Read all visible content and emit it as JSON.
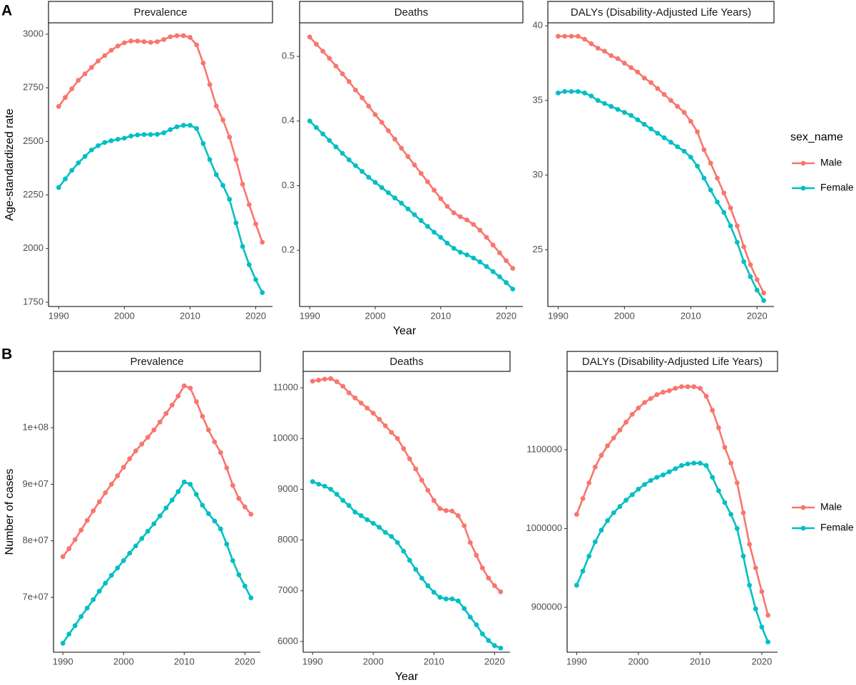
{
  "rows": [
    {
      "label": "A",
      "y_label": "Age-standardized rate",
      "x_label": "Year",
      "legend_title": "sex_name"
    },
    {
      "label": "B",
      "y_label": "Number of cases",
      "x_label": "Year"
    }
  ],
  "chart_data": [
    {
      "type": "line",
      "title": "Prevalence",
      "x": [
        1990,
        1991,
        1992,
        1993,
        1994,
        1995,
        1996,
        1997,
        1998,
        1999,
        2000,
        2001,
        2002,
        2003,
        2004,
        2005,
        2006,
        2007,
        2008,
        2009,
        2010,
        2011,
        2012,
        2013,
        2014,
        2015,
        2016,
        2017,
        2018,
        2019,
        2020,
        2021
      ],
      "xlim": [
        1988.45,
        2022.55
      ],
      "xticks": [
        1990,
        2000,
        2010,
        2020
      ],
      "ylim": [
        1730,
        3053
      ],
      "yticks": [
        1750,
        2000,
        2250,
        2500,
        2750,
        3000
      ],
      "series": [
        {
          "name": "Male",
          "color": "#F8766D",
          "values": [
            2663,
            2705,
            2745,
            2785,
            2815,
            2845,
            2875,
            2900,
            2925,
            2945,
            2960,
            2968,
            2968,
            2965,
            2962,
            2965,
            2975,
            2988,
            2993,
            2993,
            2985,
            2950,
            2865,
            2765,
            2665,
            2600,
            2520,
            2415,
            2300,
            2205,
            2115,
            2030
          ]
        },
        {
          "name": "Female",
          "color": "#00BFC4",
          "values": [
            2285,
            2325,
            2365,
            2400,
            2430,
            2460,
            2480,
            2495,
            2503,
            2510,
            2515,
            2525,
            2530,
            2532,
            2532,
            2533,
            2540,
            2555,
            2568,
            2575,
            2575,
            2560,
            2490,
            2415,
            2345,
            2295,
            2230,
            2120,
            2010,
            1925,
            1855,
            1795
          ]
        }
      ]
    },
    {
      "type": "line",
      "title": "Deaths",
      "x": [
        1990,
        1991,
        1992,
        1993,
        1994,
        1995,
        1996,
        1997,
        1998,
        1999,
        2000,
        2001,
        2002,
        2003,
        2004,
        2005,
        2006,
        2007,
        2008,
        2009,
        2010,
        2011,
        2012,
        2013,
        2014,
        2015,
        2016,
        2017,
        2018,
        2019,
        2020,
        2021
      ],
      "xlim": [
        1988.45,
        2022.55
      ],
      "xticks": [
        1990,
        2000,
        2010,
        2020
      ],
      "ylim": [
        0.113,
        0.552
      ],
      "yticks": [
        0.2,
        0.3,
        0.4,
        0.5
      ],
      "series": [
        {
          "name": "Male",
          "color": "#F8766D",
          "values": [
            0.53,
            0.519,
            0.508,
            0.497,
            0.485,
            0.473,
            0.461,
            0.448,
            0.436,
            0.423,
            0.41,
            0.398,
            0.385,
            0.372,
            0.358,
            0.345,
            0.332,
            0.319,
            0.306,
            0.293,
            0.28,
            0.268,
            0.258,
            0.252,
            0.247,
            0.24,
            0.231,
            0.22,
            0.208,
            0.196,
            0.184,
            0.172
          ]
        },
        {
          "name": "Female",
          "color": "#00BFC4",
          "values": [
            0.4,
            0.39,
            0.38,
            0.37,
            0.36,
            0.35,
            0.34,
            0.331,
            0.322,
            0.313,
            0.305,
            0.297,
            0.289,
            0.281,
            0.273,
            0.264,
            0.255,
            0.246,
            0.237,
            0.228,
            0.22,
            0.211,
            0.203,
            0.197,
            0.193,
            0.188,
            0.182,
            0.175,
            0.167,
            0.159,
            0.15,
            0.14
          ]
        }
      ]
    },
    {
      "type": "line",
      "title": "DALYs (Disability-Adjusted Life Years)",
      "x": [
        1990,
        1991,
        1992,
        1993,
        1994,
        1995,
        1996,
        1997,
        1998,
        1999,
        2000,
        2001,
        2002,
        2003,
        2004,
        2005,
        2006,
        2007,
        2008,
        2009,
        2010,
        2011,
        2012,
        2013,
        2014,
        2015,
        2016,
        2017,
        2018,
        2019,
        2020,
        2021
      ],
      "xlim": [
        1988.45,
        2022.55
      ],
      "xticks": [
        1990,
        2000,
        2010,
        2020
      ],
      "ylim": [
        21.2,
        40.2
      ],
      "yticks": [
        25,
        30,
        35,
        40
      ],
      "series": [
        {
          "name": "Male",
          "color": "#F8766D",
          "values": [
            39.3,
            39.3,
            39.3,
            39.3,
            39.1,
            38.8,
            38.5,
            38.3,
            38.0,
            37.8,
            37.5,
            37.2,
            36.9,
            36.5,
            36.2,
            35.8,
            35.4,
            35.0,
            34.6,
            34.2,
            33.6,
            32.9,
            31.7,
            30.8,
            29.8,
            28.8,
            27.8,
            26.6,
            25.2,
            24.0,
            23.0,
            22.1
          ]
        },
        {
          "name": "Female",
          "color": "#00BFC4",
          "values": [
            35.5,
            35.6,
            35.6,
            35.6,
            35.5,
            35.3,
            35.0,
            34.8,
            34.6,
            34.4,
            34.2,
            34.0,
            33.7,
            33.4,
            33.1,
            32.8,
            32.5,
            32.2,
            31.9,
            31.6,
            31.2,
            30.6,
            29.8,
            29.0,
            28.2,
            27.5,
            26.6,
            25.5,
            24.2,
            23.2,
            22.3,
            21.6
          ]
        }
      ]
    },
    {
      "type": "line",
      "title": "Prevalence",
      "x": [
        1990,
        1991,
        1992,
        1993,
        1994,
        1995,
        1996,
        1997,
        1998,
        1999,
        2000,
        2001,
        2002,
        2003,
        2004,
        2005,
        2006,
        2007,
        2008,
        2009,
        2010,
        2011,
        2012,
        2013,
        2014,
        2015,
        2016,
        2017,
        2018,
        2019,
        2020,
        2021
      ],
      "xlim": [
        1988.45,
        2022.55
      ],
      "xticks": [
        1990,
        2000,
        2010,
        2020
      ],
      "ylim": [
        60300000,
        109960000
      ],
      "yticks": [
        {
          "value": 70000000,
          "label": "7e+07"
        },
        {
          "value": 80000000,
          "label": "8e+07"
        },
        {
          "value": 90000000,
          "label": "9e+07"
        },
        {
          "value": 100000000,
          "label": "1e+08"
        }
      ],
      "series": [
        {
          "name": "Male",
          "color": "#F8766D",
          "values": [
            77200000,
            78600000,
            80200000,
            81900000,
            83600000,
            85300000,
            86900000,
            88500000,
            90000000,
            91500000,
            93000000,
            94500000,
            95900000,
            97100000,
            98300000,
            99600000,
            101000000,
            102500000,
            104000000,
            105600000,
            107400000,
            107000000,
            104600000,
            102000000,
            99600000,
            97500000,
            95600000,
            92900000,
            89800000,
            87500000,
            86000000,
            84700000
          ]
        },
        {
          "name": "Female",
          "color": "#00BFC4",
          "values": [
            61900000,
            63500000,
            65000000,
            66600000,
            68100000,
            69600000,
            71100000,
            72500000,
            73900000,
            75200000,
            76500000,
            77800000,
            79100000,
            80400000,
            81700000,
            83000000,
            84400000,
            85800000,
            87200000,
            88700000,
            90400000,
            90000000,
            88200000,
            86300000,
            84800000,
            83500000,
            82100000,
            79400000,
            76500000,
            74000000,
            72000000,
            69900000
          ]
        }
      ]
    },
    {
      "type": "line",
      "title": "Deaths",
      "x": [
        1990,
        1991,
        1992,
        1993,
        1994,
        1995,
        1996,
        1997,
        1998,
        1999,
        2000,
        2001,
        2002,
        2003,
        2004,
        2005,
        2006,
        2007,
        2008,
        2009,
        2010,
        2011,
        2012,
        2013,
        2014,
        2015,
        2016,
        2017,
        2018,
        2019,
        2020,
        2021
      ],
      "xlim": [
        1988.45,
        2022.55
      ],
      "xticks": [
        1990,
        2000,
        2010,
        2020
      ],
      "ylim": [
        5789,
        11323
      ],
      "yticks": [
        6000,
        7000,
        8000,
        9000,
        10000,
        11000
      ],
      "series": [
        {
          "name": "Male",
          "color": "#F8766D",
          "values": [
            11130,
            11150,
            11170,
            11180,
            11120,
            11030,
            10900,
            10800,
            10700,
            10600,
            10500,
            10380,
            10250,
            10120,
            10000,
            9800,
            9600,
            9400,
            9180,
            8980,
            8780,
            8620,
            8580,
            8570,
            8480,
            8280,
            7950,
            7700,
            7450,
            7250,
            7100,
            6980
          ]
        },
        {
          "name": "Female",
          "color": "#00BFC4",
          "values": [
            9150,
            9100,
            9060,
            9000,
            8900,
            8780,
            8680,
            8550,
            8480,
            8400,
            8330,
            8250,
            8150,
            8070,
            7950,
            7780,
            7600,
            7420,
            7250,
            7100,
            6970,
            6870,
            6840,
            6840,
            6800,
            6650,
            6480,
            6330,
            6150,
            6020,
            5920,
            5870
          ]
        }
      ]
    },
    {
      "type": "line",
      "title": "DALYs (Disability-Adjusted Life Years)",
      "x": [
        1990,
        1991,
        1992,
        1993,
        1994,
        1995,
        1996,
        1997,
        1998,
        1999,
        2000,
        2001,
        2002,
        2003,
        2004,
        2005,
        2006,
        2007,
        2008,
        2009,
        2010,
        2011,
        2012,
        2013,
        2014,
        2015,
        2016,
        2017,
        2018,
        2019,
        2020,
        2021
      ],
      "xlim": [
        1988.45,
        2022.55
      ],
      "xticks": [
        1990,
        2000,
        2010,
        2020
      ],
      "ylim": [
        843000,
        1199500
      ],
      "yticks": [
        900000,
        1000000,
        1100000
      ],
      "series": [
        {
          "name": "Male",
          "color": "#F8766D",
          "values": [
            1018000,
            1038000,
            1058000,
            1078000,
            1093000,
            1105000,
            1115000,
            1125000,
            1135000,
            1145000,
            1153000,
            1160000,
            1165000,
            1170000,
            1173000,
            1175000,
            1178000,
            1180000,
            1180000,
            1180000,
            1178000,
            1168000,
            1150000,
            1128000,
            1103000,
            1083000,
            1058000,
            1020000,
            980000,
            950000,
            920000,
            890000
          ]
        },
        {
          "name": "Female",
          "color": "#00BFC4",
          "values": [
            928000,
            946000,
            965000,
            983000,
            998000,
            1010000,
            1020000,
            1028000,
            1036000,
            1043000,
            1050000,
            1056000,
            1061000,
            1065000,
            1068000,
            1072000,
            1076000,
            1080000,
            1082000,
            1083000,
            1083000,
            1080000,
            1065000,
            1048000,
            1033000,
            1018000,
            1000000,
            965000,
            928000,
            898000,
            875000,
            856000
          ]
        }
      ]
    }
  ]
}
